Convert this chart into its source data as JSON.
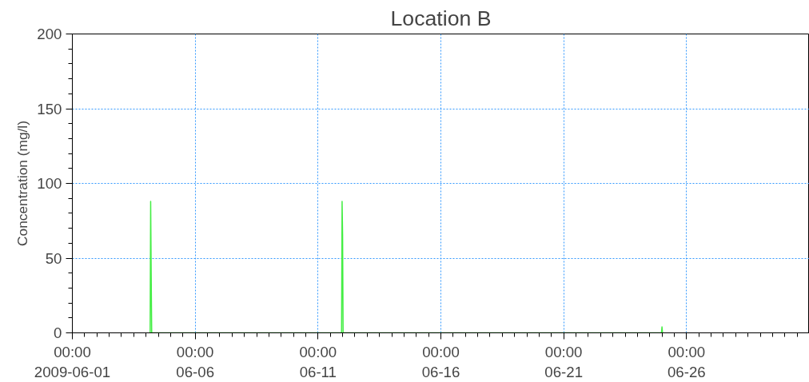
{
  "chart_data": {
    "type": "line",
    "title": "Location B",
    "ylabel": "Concentration (mg/l)",
    "x": [
      "2009-06-04T04:00",
      "2009-06-04T04:30",
      "2009-06-04T05:00",
      "2009-06-04T05:30",
      "2009-06-11T23:00",
      "2009-06-11T23:30",
      "2009-06-12T00:00",
      "2009-06-12T00:30",
      "2009-06-24T23:30",
      "2009-06-25T00:00",
      "2009-06-25T00:30"
    ],
    "series": [
      {
        "color": "#44ee44",
        "values": [
          0,
          88,
          40,
          0,
          0,
          88,
          65,
          0,
          0,
          4,
          0
        ]
      }
    ],
    "xlim": [
      "2009-06-01",
      "2009-07-01"
    ],
    "xticks": [
      {
        "value": "2009-06-01",
        "label": "00:00\n2009-06-01"
      },
      {
        "value": "2009-06-06",
        "label": "00:00\n06-06"
      },
      {
        "value": "2009-06-11",
        "label": "00:00\n06-11"
      },
      {
        "value": "2009-06-16",
        "label": "00:00\n06-16"
      },
      {
        "value": "2009-06-21",
        "label": "00:00\n06-21"
      },
      {
        "value": "2009-06-26",
        "label": "00:00\n06-26"
      }
    ],
    "ylim": [
      0,
      200
    ],
    "yticks": [
      0,
      50,
      100,
      150,
      200
    ],
    "grid": true,
    "marker": "none",
    "line_style": "solid"
  }
}
